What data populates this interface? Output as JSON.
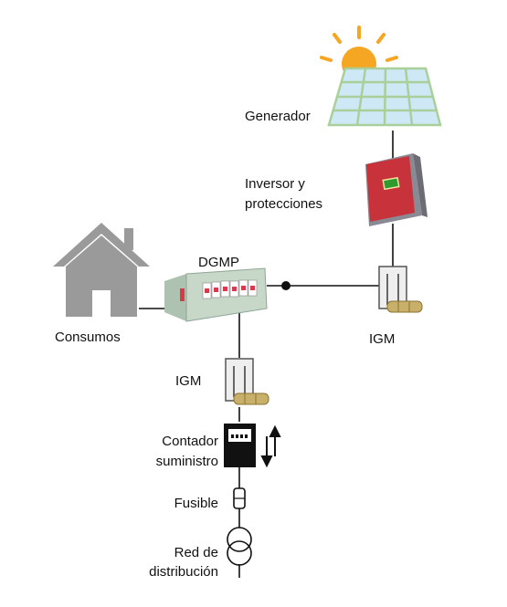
{
  "labels": {
    "generator": "Generador",
    "inverter_line1": "Inversor y",
    "inverter_line2": "protecciones",
    "panel": "DGMP",
    "consumption": "Consumos",
    "igm_right": "IGM",
    "igm_bottom": "IGM",
    "meter_line1": "Contador",
    "meter_line2": "suministro",
    "fuse": "Fusible",
    "grid_line1": "Red de",
    "grid_line2": "distribución"
  },
  "icons": {
    "sun": "sun-icon",
    "solar_panel": "solar-panel-icon",
    "inverter": "inverter-icon",
    "house": "house-icon",
    "panel": "distribution-panel-icon",
    "switch": "switch-icon",
    "meter": "meter-icon",
    "arrows": "bidirectional-arrows-icon",
    "fuse": "fuse-icon",
    "transformer": "transformer-icon"
  },
  "colors": {
    "sun": "#f5a623",
    "solar_panel_fill": "#cfe8f6",
    "solar_panel_grid": "#a9cf9a",
    "inverter_front": "#c8323a",
    "inverter_body": "#8a8a94",
    "house": "#9a9a9a",
    "panel_body": "#c7d7c8",
    "breaker": "#d8394c",
    "meter": "#111111",
    "wire": "#111111"
  }
}
